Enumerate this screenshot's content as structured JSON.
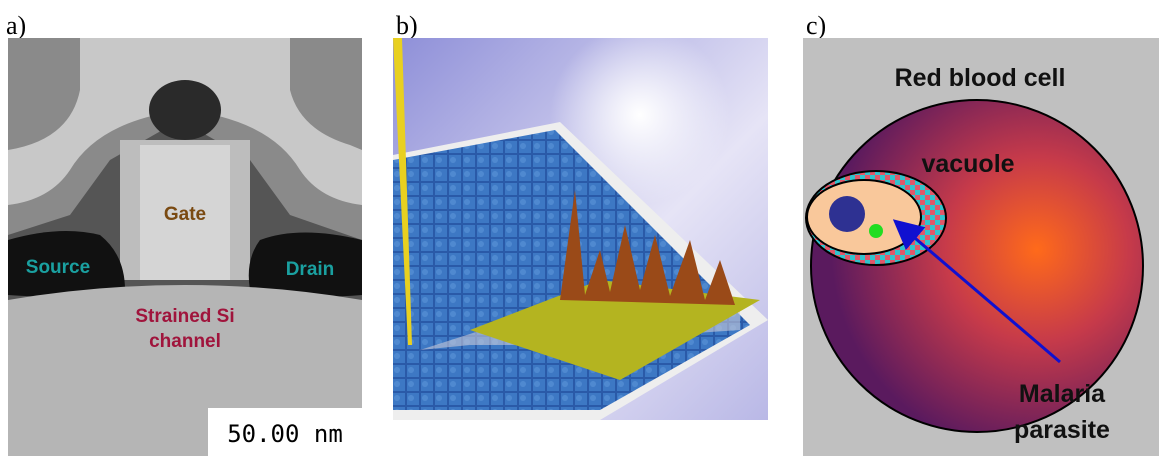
{
  "panels": [
    {
      "label": "a)",
      "annotations": [
        "Gate",
        "Source",
        "Drain",
        "Strained Si",
        "channel"
      ],
      "scale_bar": "50.00 nm"
    },
    {
      "label": "b)"
    },
    {
      "label": "c)",
      "annotations": [
        "Red blood cell",
        "vacuole",
        "Malaria",
        "parasite"
      ]
    }
  ]
}
